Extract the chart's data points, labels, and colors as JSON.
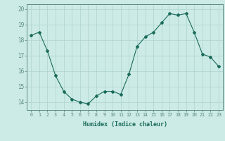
{
  "xlabel": "Humidex (Indice chaleur)",
  "x": [
    0,
    1,
    2,
    3,
    4,
    5,
    6,
    7,
    8,
    9,
    10,
    11,
    12,
    13,
    14,
    15,
    16,
    17,
    18,
    19,
    20,
    21,
    22,
    23
  ],
  "y": [
    18.3,
    18.5,
    17.3,
    15.7,
    14.7,
    14.2,
    14.0,
    13.9,
    14.4,
    14.7,
    14.7,
    14.5,
    15.8,
    17.6,
    18.2,
    18.5,
    19.1,
    19.7,
    19.6,
    19.7,
    18.5,
    17.1,
    16.9,
    16.3
  ],
  "line_color": "#1a6b5a",
  "marker": "D",
  "marker_size": 2.0,
  "ylim": [
    13.5,
    20.3
  ],
  "yticks": [
    14,
    15,
    16,
    17,
    18,
    19,
    20
  ],
  "bg_color": "#cceae6",
  "grid_color": "#aed4cf",
  "axes_color": "#5a8a80",
  "tick_label_color": "#1a6b5a",
  "xlabel_fontsize": 6.0,
  "ytick_fontsize": 5.5,
  "xtick_fontsize": 4.8
}
